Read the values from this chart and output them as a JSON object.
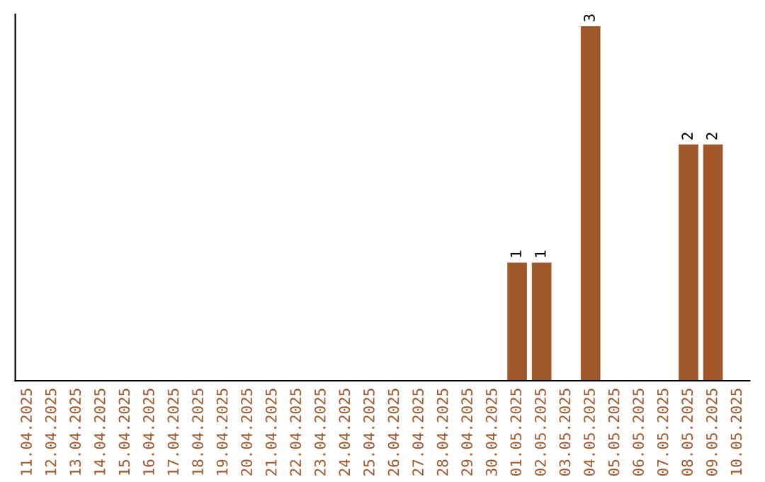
{
  "chart_data": {
    "type": "bar",
    "categories": [
      "11.04.2025",
      "12.04.2025",
      "13.04.2025",
      "14.04.2025",
      "15.04.2025",
      "16.04.2025",
      "17.04.2025",
      "18.04.2025",
      "19.04.2025",
      "20.04.2025",
      "21.04.2025",
      "22.04.2025",
      "23.04.2025",
      "24.04.2025",
      "25.04.2025",
      "26.04.2025",
      "27.04.2025",
      "28.04.2025",
      "29.04.2025",
      "30.04.2025",
      "01.05.2025",
      "02.05.2025",
      "03.05.2025",
      "04.05.2025",
      "05.05.2025",
      "06.05.2025",
      "07.05.2025",
      "08.05.2025",
      "09.05.2025",
      "10.05.2025"
    ],
    "values": [
      null,
      null,
      null,
      null,
      null,
      null,
      null,
      null,
      null,
      null,
      null,
      null,
      null,
      null,
      null,
      null,
      null,
      null,
      null,
      null,
      1,
      1,
      null,
      3,
      null,
      null,
      null,
      2,
      2,
      null
    ],
    "data_labels": true,
    "color": "#a0582a",
    "ylim": [
      0,
      3.1
    ],
    "tick_labels": "x",
    "grid": false
  }
}
